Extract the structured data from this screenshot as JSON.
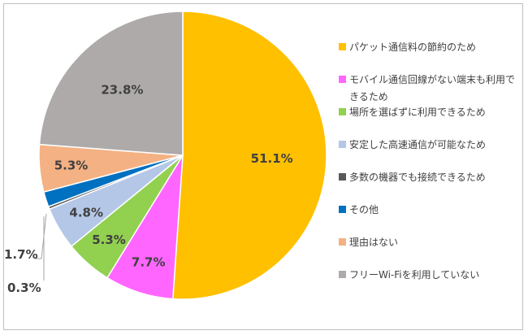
{
  "chart_data": {
    "type": "pie",
    "title": "",
    "start_angle_deg": 0,
    "direction": "clockwise",
    "legend_position": "right",
    "slices": [
      {
        "label": "パケット通信料の節約のため",
        "legend_lines": [
          "パケット通信料の節約のため"
        ],
        "value": 51.1,
        "display": "51.1%",
        "color": "#FFC000"
      },
      {
        "label": "モバイル通信回線がない端末も利用できるため",
        "legend_lines": [
          "モバイル通信回線がない端末も利用で",
          "きるため"
        ],
        "value": 7.7,
        "display": "7.7%",
        "color": "#FF66FF"
      },
      {
        "label": "場所を選ばずに利用できるため",
        "legend_lines": [
          "場所を選ばずに利用できるため"
        ],
        "value": 5.3,
        "display": "5.3%",
        "color": "#92D050"
      },
      {
        "label": "安定した高速通信が可能なため",
        "legend_lines": [
          "安定した高速通信が可能なため"
        ],
        "value": 4.8,
        "display": "4.8%",
        "color": "#B4C7E7"
      },
      {
        "label": "多数の機器でも接続できるため",
        "legend_lines": [
          "多数の機器でも接続できるため"
        ],
        "value": 0.3,
        "display": "0.3%",
        "color": "#595959"
      },
      {
        "label": "その他",
        "legend_lines": [
          "その他"
        ],
        "value": 1.7,
        "display": "1.7%",
        "color": "#0070C0"
      },
      {
        "label": "理由はない",
        "legend_lines": [
          "理由はない"
        ],
        "value": 5.3,
        "display": "5.3%",
        "color": "#F4B183"
      },
      {
        "label": "フリーWi-Fiを利用していない",
        "legend_lines": [
          "フリーWi-Fiを利用していない"
        ],
        "value": 23.8,
        "display": "23.8%",
        "color": "#AEAAAA"
      }
    ]
  }
}
